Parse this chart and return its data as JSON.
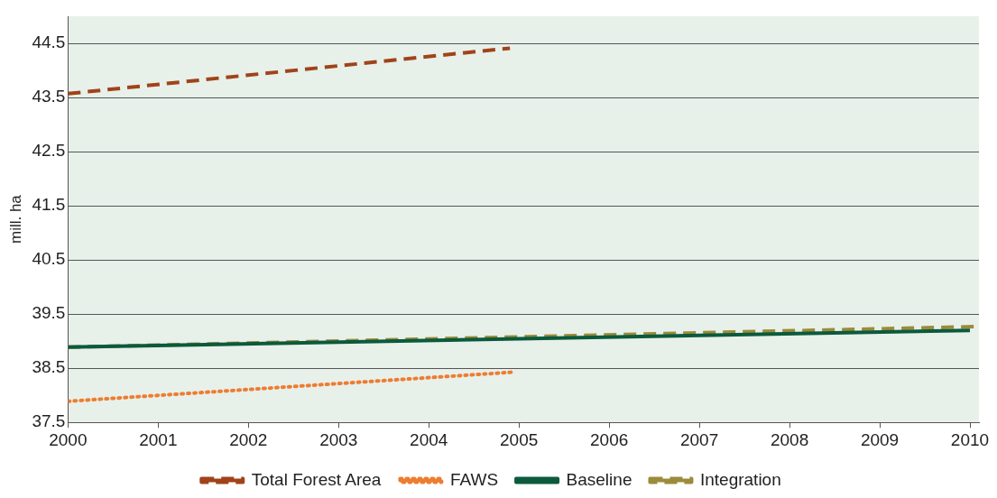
{
  "chart_data": {
    "type": "line",
    "ylabel": "mill. ha",
    "xlim": [
      2000,
      2010.1
    ],
    "xticks": [
      2000,
      2001,
      2002,
      2003,
      2004,
      2005,
      2006,
      2007,
      2008,
      2009,
      2010
    ],
    "ylim": [
      37.5,
      45
    ],
    "yticks": [
      37.5,
      38.5,
      39.5,
      40.5,
      41.5,
      42.5,
      43.5,
      44.5
    ],
    "grid": "y",
    "legend": "bottom",
    "series": [
      {
        "name": "Total Forest Area",
        "color": "#a0431a",
        "line_style": "dashed",
        "x": [
          2000,
          2004.9
        ],
        "values": [
          43.57,
          44.41
        ]
      },
      {
        "name": "FAWS",
        "color": "#ed7d31",
        "line_style": "dotted",
        "x": [
          2000,
          2004.95
        ],
        "values": [
          37.89,
          38.43
        ]
      },
      {
        "name": "Baseline",
        "color": "#0b5a3c",
        "line_style": "solid",
        "x": [
          2000,
          2010
        ],
        "values": [
          38.89,
          39.2
        ]
      },
      {
        "name": "Integration",
        "color": "#9b8b3a",
        "line_style": "dashed",
        "x": [
          2000,
          2010.1
        ],
        "values": [
          38.89,
          39.27
        ]
      }
    ]
  }
}
